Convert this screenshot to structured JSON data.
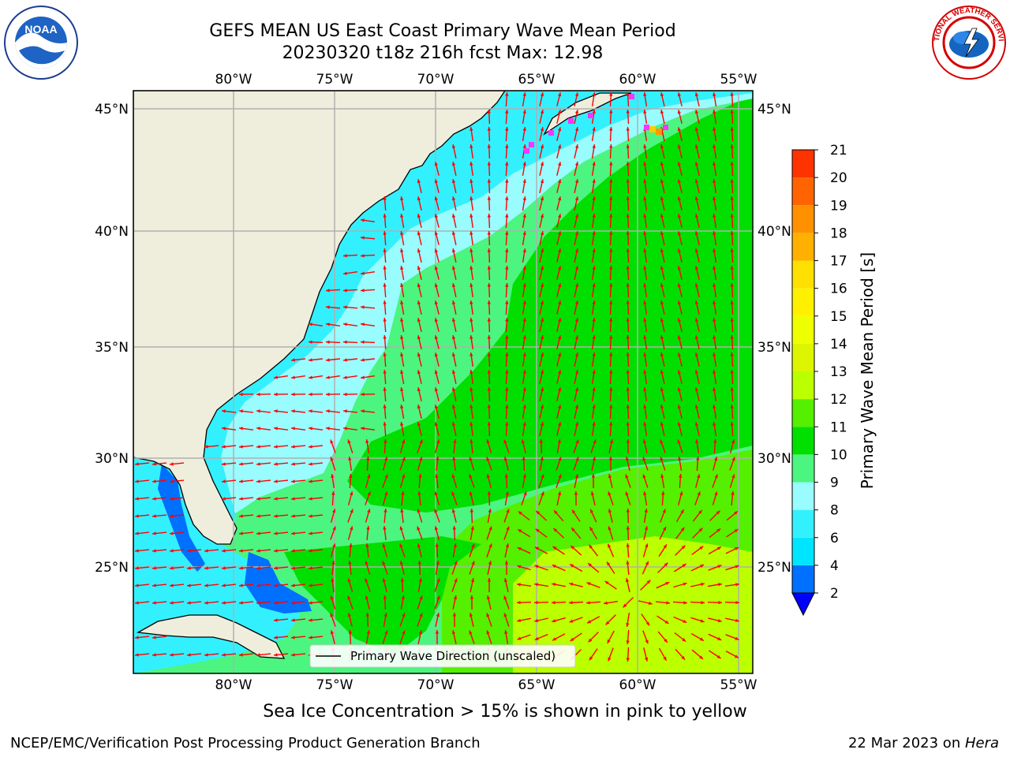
{
  "header": {
    "title_line1": "GEFS MEAN US East Coast Primary Wave Mean Period",
    "title_line2": "20230320 t18z 216h fcst   Max: 12.98"
  },
  "logos": {
    "left_text": "NOAA",
    "right_text": "NATIONAL WEATHER SERVICE"
  },
  "map": {
    "lon_labels": [
      "80°W",
      "75°W",
      "70°W",
      "65°W",
      "60°W",
      "55°W"
    ],
    "lat_labels": [
      "45°N",
      "40°N",
      "35°N",
      "30°N",
      "25°N"
    ],
    "legend_label": "Primary Wave Direction (unscaled)",
    "arrow_color": "#ff0000"
  },
  "colorbar": {
    "label": "Primary Wave Mean Period [s]",
    "ticks": [
      "2",
      "4",
      "6",
      "8",
      "9",
      "10",
      "11",
      "12",
      "13",
      "14",
      "15",
      "16",
      "17",
      "18",
      "19",
      "20",
      "21"
    ],
    "colors": [
      "#0070ff",
      "#00e5ff",
      "#33f0ff",
      "#99fcff",
      "#4cf57f",
      "#00df00",
      "#55ef00",
      "#bbff00",
      "#ddf500",
      "#eeff00",
      "#fff000",
      "#ffe000",
      "#ffb000",
      "#ff9000",
      "#ff6400",
      "#ff3300",
      "#ff0000"
    ],
    "extend_color": "#0000ff"
  },
  "subtitle": "Sea Ice Concentration > 15% is shown in pink to yellow",
  "footer": {
    "left": "NCEP/EMC/Verification Post Processing Product Generation Branch",
    "right_prefix": "22 Mar 2023 on ",
    "right_machine": "Hera"
  }
}
